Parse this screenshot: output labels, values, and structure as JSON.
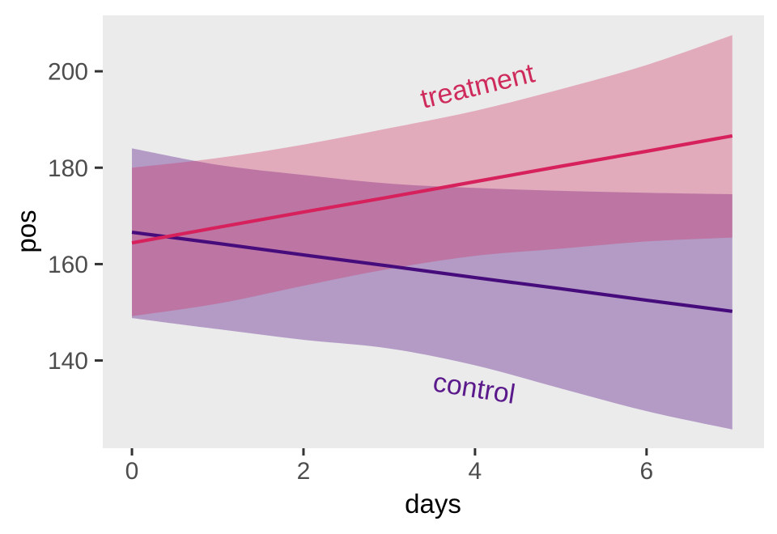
{
  "figure": {
    "background": "#FFFFFF",
    "panel_background": "#EBEBEB"
  },
  "axis_style": {
    "tick_color": "#333333",
    "tick_label_color": "#4D4D4D",
    "title_color": "#000000"
  },
  "chart_data": {
    "type": "line",
    "title": "",
    "xlabel": "days",
    "ylabel": "pos",
    "grid": false,
    "legend_position": "none",
    "x_ticks": [
      0,
      2,
      4,
      6
    ],
    "y_ticks": [
      140,
      160,
      180,
      200
    ],
    "x_domain": [
      -0.34,
      7.37
    ],
    "y_domain": [
      121.8,
      211.6
    ],
    "x": [
      0,
      1,
      2,
      3,
      4,
      5,
      6,
      7
    ],
    "series": [
      {
        "name": "control",
        "line_values": [
          166.6,
          164.3,
          161.9,
          159.6,
          157.2,
          154.9,
          152.5,
          150.2
        ],
        "ribbon_low": [
          148.8,
          146.5,
          144.3,
          142.5,
          139.0,
          134.2,
          129.5,
          125.7
        ],
        "ribbon_high": [
          184.0,
          180.6,
          178.5,
          176.7,
          175.8,
          175.2,
          174.8,
          174.5
        ],
        "line_color": "#470C7C",
        "ribbon_color": "#5A1A8B",
        "ribbon_opacity": 0.38
      },
      {
        "name": "treatment",
        "line_values": [
          164.4,
          167.6,
          170.8,
          173.9,
          177.1,
          180.3,
          183.4,
          186.6
        ],
        "ribbon_low": [
          149.2,
          151.8,
          155.5,
          159.0,
          161.7,
          163.2,
          164.7,
          165.5
        ],
        "ribbon_high": [
          180.0,
          182.0,
          184.8,
          188.2,
          191.8,
          196.3,
          201.3,
          207.5
        ],
        "line_color": "#D6215C",
        "ribbon_color": "#D02A5E",
        "ribbon_opacity": 0.33
      }
    ],
    "annotations": [
      {
        "text": "treatment",
        "x": 4.03,
        "y": 196.9,
        "angle": -13.5,
        "color": "#CE2B5C"
      },
      {
        "text": "control",
        "x": 3.99,
        "y": 134.2,
        "angle": 9,
        "color": "#5B1A8B"
      }
    ]
  }
}
